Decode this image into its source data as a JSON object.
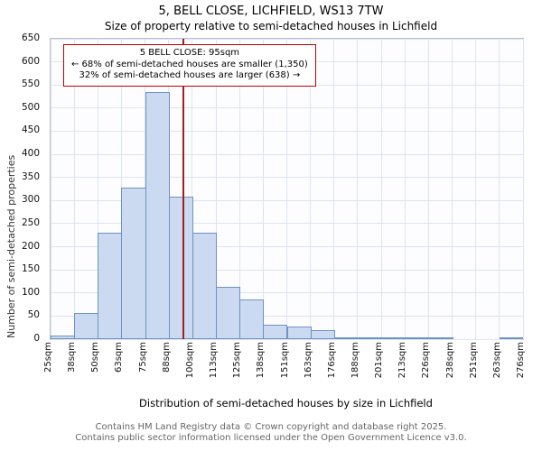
{
  "chart_data": {
    "type": "bar",
    "title": "5, BELL CLOSE, LICHFIELD, WS13 7TW",
    "subtitle": "Size of property relative to semi-detached houses in Lichfield",
    "xlabel": "Distribution of semi-detached houses by size in Lichfield",
    "ylabel": "Number of semi-detached properties",
    "bin_edges_sqm": [
      25,
      38,
      50,
      63,
      75,
      88,
      100,
      113,
      125,
      138,
      151,
      163,
      176,
      188,
      201,
      213,
      226,
      238,
      251,
      263,
      276
    ],
    "x_tick_labels": [
      "25sqm",
      "38sqm",
      "50sqm",
      "63sqm",
      "75sqm",
      "88sqm",
      "100sqm",
      "113sqm",
      "125sqm",
      "138sqm",
      "151sqm",
      "163sqm",
      "176sqm",
      "188sqm",
      "201sqm",
      "213sqm",
      "226sqm",
      "238sqm",
      "251sqm",
      "263sqm",
      "276sqm"
    ],
    "values": [
      8,
      57,
      230,
      328,
      535,
      308,
      230,
      113,
      85,
      32,
      27,
      20,
      4,
      3,
      3,
      2,
      1,
      0,
      0,
      2
    ],
    "ylim": [
      0,
      650
    ],
    "ytick_step": 50,
    "grid": true,
    "legend": false,
    "marker_value_sqm": 95,
    "colors": {
      "bar_fill": "#ccdaf1",
      "bar_border": "#6d92c4",
      "marker_line": "#a02020",
      "grid": "#dde4f1",
      "annotation_border": "#c00000"
    }
  },
  "annotation": {
    "line1": "5 BELL CLOSE: 95sqm",
    "line2": "← 68% of semi-detached houses are smaller (1,350)",
    "line3": "32% of semi-detached houses are larger (638) →"
  },
  "footer": {
    "line1": "Contains HM Land Registry data © Crown copyright and database right 2025.",
    "line2": "Contains public sector information licensed under the Open Government Licence v3.0."
  }
}
